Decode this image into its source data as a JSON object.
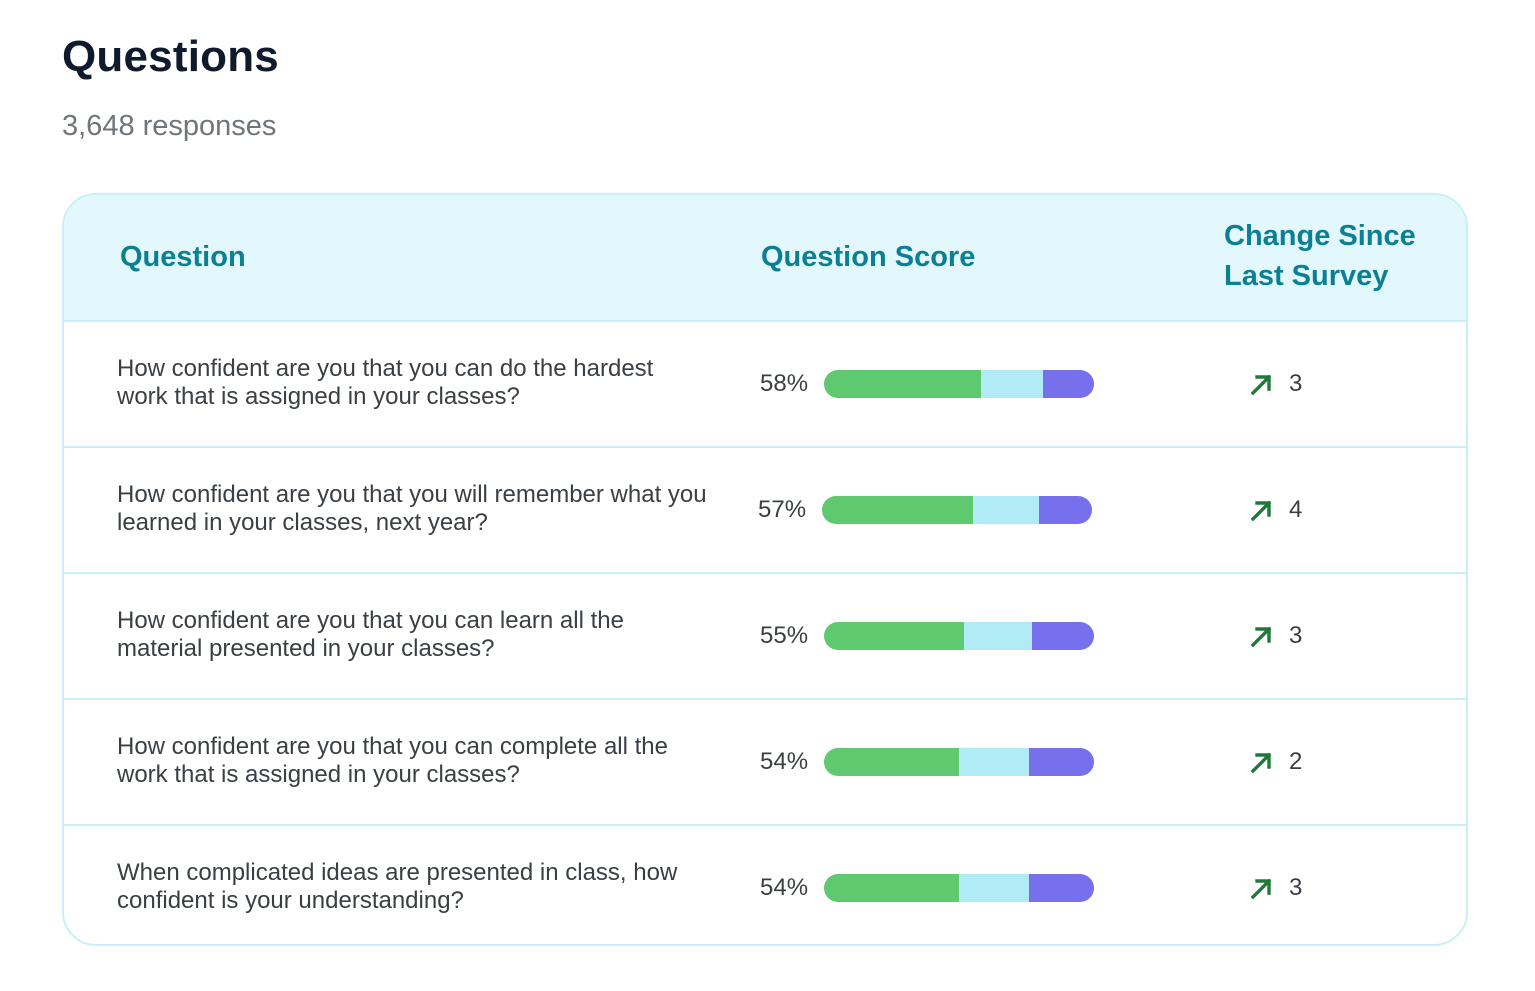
{
  "header": {
    "title": "Questions",
    "responses": "3,648 responses"
  },
  "table": {
    "columns": {
      "question": "Question",
      "score": "Question Score",
      "change": "Change Since Last Survey"
    },
    "rows": [
      {
        "question": "How confident are you that you can do the hardest work that is assigned in your classes?",
        "score": "58%",
        "bar": {
          "green": 0.58,
          "light": 0.23,
          "purple": 0.19
        },
        "change_icon": "arrow-up-right-icon",
        "change": "3"
      },
      {
        "question": "How confident are you that you will remember what you learned in your classes, next year?",
        "score": "57%",
        "bar": {
          "green": 0.56,
          "light": 0.245,
          "purple": 0.195
        },
        "change_icon": "arrow-up-right-icon",
        "change": "4"
      },
      {
        "question": "How confident are you that you can learn all the material presented in your classes?",
        "score": "55%",
        "bar": {
          "green": 0.52,
          "light": 0.25,
          "purple": 0.23
        },
        "change_icon": "arrow-up-right-icon",
        "change": "3"
      },
      {
        "question": "How confident are you that you can complete all the work that is assigned in your classes?",
        "score": "54%",
        "bar": {
          "green": 0.5,
          "light": 0.26,
          "purple": 0.24
        },
        "change_icon": "arrow-up-right-icon",
        "change": "2"
      },
      {
        "question": "When complicated ideas are presented in class, how confident is your understanding?",
        "score": "54%",
        "bar": {
          "green": 0.5,
          "light": 0.26,
          "purple": 0.24
        },
        "change_icon": "arrow-up-right-icon",
        "change": "3"
      }
    ]
  },
  "colors": {
    "header_bg": "#e3f8fc",
    "header_text": "#0b7f93",
    "border": "#c8f0f8",
    "bar_green": "#5ec96e",
    "bar_light": "#b1ebf5",
    "bar_purple": "#7670ec",
    "arrow": "#1f7a3a"
  }
}
